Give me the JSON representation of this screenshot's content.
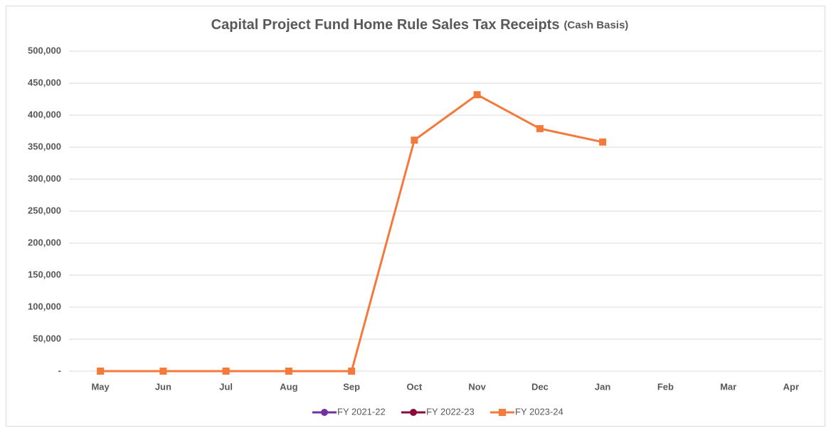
{
  "chart_data": {
    "type": "line",
    "title": "Capital Project Fund Home Rule Sales Tax Receipts",
    "subtitle": "(Cash Basis)",
    "categories": [
      "May",
      "Jun",
      "Jul",
      "Aug",
      "Sep",
      "Oct",
      "Nov",
      "Dec",
      "Jan",
      "Feb",
      "Mar",
      "Apr"
    ],
    "series": [
      {
        "name": "FY 2021-22",
        "color": "#7030a0",
        "marker": "circle",
        "values": [
          null,
          null,
          null,
          null,
          null,
          null,
          null,
          null,
          null,
          null,
          null,
          null
        ]
      },
      {
        "name": "FY 2022-23",
        "color": "#8b0a3a",
        "marker": "circle",
        "values": [
          null,
          null,
          null,
          null,
          null,
          null,
          null,
          null,
          null,
          null,
          null,
          null
        ]
      },
      {
        "name": "FY 2023-24",
        "color": "#f47a3c",
        "marker": "square",
        "values": [
          0,
          0,
          0,
          0,
          0,
          361000,
          432000,
          379000,
          358000,
          null,
          null,
          null
        ]
      }
    ],
    "ylim": [
      0,
      500000
    ],
    "yticks": [
      {
        "value": 0,
        "label": "-"
      },
      {
        "value": 50000,
        "label": "50,000"
      },
      {
        "value": 100000,
        "label": "100,000"
      },
      {
        "value": 150000,
        "label": "150,000"
      },
      {
        "value": 200000,
        "label": "200,000"
      },
      {
        "value": 250000,
        "label": "250,000"
      },
      {
        "value": 300000,
        "label": "300,000"
      },
      {
        "value": 350000,
        "label": "350,000"
      },
      {
        "value": 400000,
        "label": "400,000"
      },
      {
        "value": 450000,
        "label": "450,000"
      },
      {
        "value": 500000,
        "label": "500,000"
      }
    ],
    "grid": true,
    "legend": "bottom"
  }
}
